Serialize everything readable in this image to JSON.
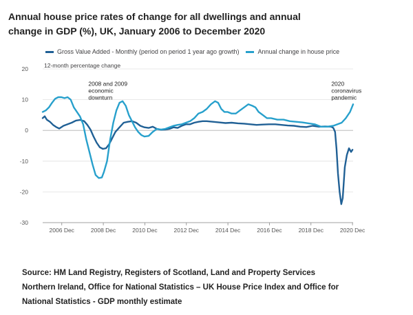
{
  "title": "Annual house price rates of change for all dwellings and annual change in GDP (%), UK, January 2006 to December 2020",
  "source": "Source: HM Land Registry, Registers of Scotland, Land and Property Services Northern Ireland, Office for National Statistics – UK House Price Index and Office for National Statistics - GDP monthly estimate",
  "colors": {
    "gdp": "#206095",
    "house": "#27a0cc",
    "grid": "#e0e0e0",
    "axis": "#666666"
  },
  "chart_data": {
    "type": "line",
    "title": "Annual house price rates of change for all dwellings and annual change in GDP (%), UK, January 2006 to December 2020",
    "ylabel": "12-month percentage change",
    "xlabel": "",
    "ylim": [
      -30,
      20
    ],
    "xlim": [
      2006.0,
      2020.95
    ],
    "yticks": [
      20,
      10,
      0,
      -10,
      -20,
      -30
    ],
    "xticks": [
      {
        "x": 2006.92,
        "label": "2006 Dec"
      },
      {
        "x": 2008.92,
        "label": "2008 Dec"
      },
      {
        "x": 2010.92,
        "label": "2010 Dec"
      },
      {
        "x": 2012.92,
        "label": "2012 Dec"
      },
      {
        "x": 2014.92,
        "label": "2014 Dec"
      },
      {
        "x": 2016.92,
        "label": "2016 Dec"
      },
      {
        "x": 2018.92,
        "label": "2018 Dec"
      },
      {
        "x": 2020.92,
        "label": "2020 Dec"
      }
    ],
    "grid": true,
    "legend": "top",
    "series": [
      {
        "name": "Gross Value Added - Monthly (period on period 1 year ago growth)",
        "color": "#206095",
        "x": [
          2006.0,
          2006.1,
          2006.2,
          2006.35,
          2006.5,
          2006.65,
          2006.8,
          2007.0,
          2007.2,
          2007.4,
          2007.6,
          2007.8,
          2008.0,
          2008.15,
          2008.3,
          2008.45,
          2008.6,
          2008.75,
          2008.9,
          2009.05,
          2009.2,
          2009.35,
          2009.5,
          2009.7,
          2009.9,
          2010.1,
          2010.3,
          2010.5,
          2010.7,
          2010.9,
          2011.1,
          2011.3,
          2011.5,
          2011.7,
          2011.9,
          2012.1,
          2012.3,
          2012.5,
          2012.7,
          2012.9,
          2013.1,
          2013.3,
          2013.5,
          2013.7,
          2013.9,
          2014.2,
          2014.5,
          2014.8,
          2015.1,
          2015.4,
          2015.7,
          2016.0,
          2016.3,
          2016.6,
          2016.9,
          2017.2,
          2017.5,
          2017.8,
          2018.1,
          2018.4,
          2018.7,
          2019.0,
          2019.3,
          2019.6,
          2019.9,
          2020.0,
          2020.08,
          2020.15,
          2020.22,
          2020.3,
          2020.38,
          2020.45,
          2020.55,
          2020.65,
          2020.75,
          2020.85,
          2020.92
        ],
        "values": [
          4,
          4.6,
          3.5,
          2.8,
          1.8,
          1.1,
          0.6,
          1.5,
          2,
          2.5,
          3.2,
          3.4,
          3.0,
          1.8,
          0.3,
          -2,
          -4,
          -5.5,
          -6,
          -5.8,
          -4.5,
          -2.5,
          -0.5,
          1,
          2.5,
          2.8,
          3,
          2.5,
          1.5,
          1,
          0.8,
          1.2,
          0.5,
          0.2,
          0.3,
          0.5,
          1,
          0.8,
          1.5,
          2,
          2,
          2.5,
          2.8,
          3,
          3,
          2.8,
          2.6,
          2.4,
          2.5,
          2.3,
          2.2,
          2,
          1.8,
          1.9,
          2,
          2,
          1.8,
          1.6,
          1.5,
          1.2,
          1.1,
          1.5,
          1.2,
          1.3,
          1.2,
          0.8,
          -0.5,
          -6,
          -14,
          -20,
          -24,
          -22,
          -12,
          -8,
          -5.8,
          -7,
          -6.3
        ]
      },
      {
        "name": "Annual change in house price",
        "color": "#27a0cc",
        "x": [
          2006.0,
          2006.15,
          2006.3,
          2006.45,
          2006.6,
          2006.75,
          2006.9,
          2007.05,
          2007.2,
          2007.35,
          2007.5,
          2007.65,
          2007.8,
          2007.95,
          2008.1,
          2008.25,
          2008.4,
          2008.55,
          2008.7,
          2008.85,
          2008.95,
          2009.1,
          2009.25,
          2009.4,
          2009.55,
          2009.7,
          2009.85,
          2010.0,
          2010.15,
          2010.3,
          2010.45,
          2010.6,
          2010.75,
          2010.9,
          2011.1,
          2011.3,
          2011.5,
          2011.7,
          2011.9,
          2012.1,
          2012.3,
          2012.5,
          2012.7,
          2012.9,
          2013.1,
          2013.3,
          2013.5,
          2013.7,
          2013.9,
          2014.1,
          2014.3,
          2014.45,
          2014.6,
          2014.75,
          2014.9,
          2015.1,
          2015.3,
          2015.5,
          2015.7,
          2015.9,
          2016.1,
          2016.25,
          2016.4,
          2016.6,
          2016.8,
          2017.0,
          2017.3,
          2017.6,
          2017.9,
          2018.2,
          2018.5,
          2018.8,
          2019.1,
          2019.4,
          2019.7,
          2020.0,
          2020.2,
          2020.4,
          2020.6,
          2020.8,
          2020.95
        ],
        "values": [
          6,
          6.5,
          7.5,
          9,
          10.3,
          10.8,
          10.8,
          10.5,
          10.8,
          10,
          7.5,
          6,
          4.5,
          2,
          -3,
          -7,
          -11,
          -14.5,
          -15.5,
          -15.3,
          -13.5,
          -10,
          -3,
          2.5,
          6.5,
          9,
          9.5,
          8,
          5,
          3,
          1,
          -0.5,
          -1.5,
          -2,
          -1.8,
          -0.5,
          0.5,
          0.3,
          0.5,
          1,
          1.5,
          1.8,
          2,
          2.5,
          3,
          4,
          5.5,
          6,
          7,
          8.5,
          9.5,
          9,
          7,
          6,
          6,
          5.5,
          5.5,
          6.5,
          7.5,
          8.5,
          8,
          7.5,
          6,
          5,
          4,
          4,
          3.5,
          3.5,
          3,
          2.8,
          2.6,
          2.3,
          2,
          1.2,
          1.2,
          1.5,
          2,
          2.5,
          4,
          6,
          8.5
        ]
      }
    ],
    "annotations": [
      {
        "x": 2008.2,
        "y": 14.5,
        "lines": [
          "2008 and 2009",
          "economic",
          "downturn"
        ]
      },
      {
        "x": 2019.9,
        "y": 14.5,
        "lines": [
          "2020",
          "coronavirus",
          "pandemic"
        ]
      }
    ]
  }
}
